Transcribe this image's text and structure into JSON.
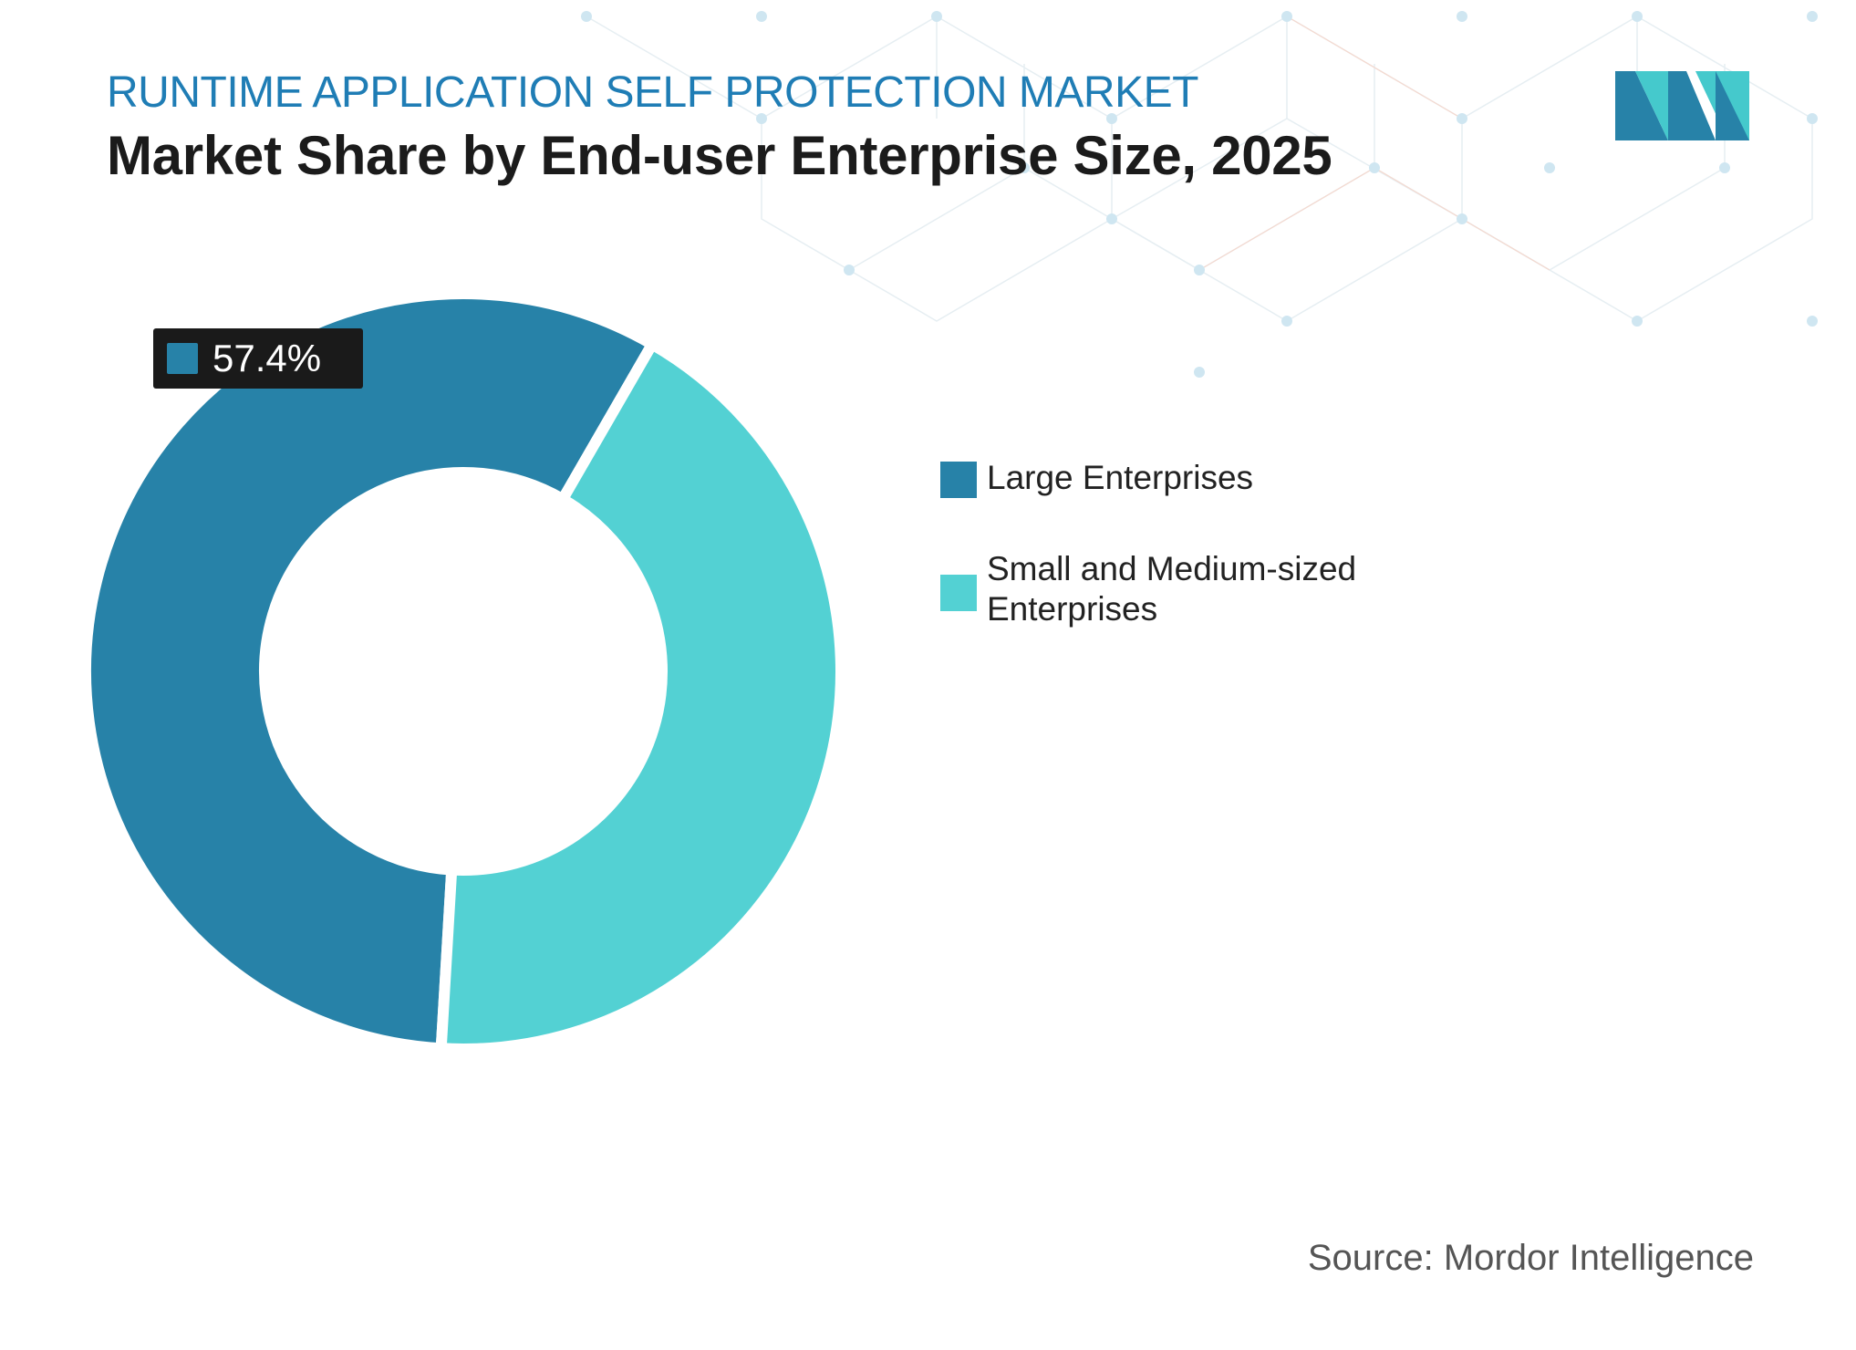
{
  "header": {
    "supertitle": "RUNTIME APPLICATION SELF PROTECTION MARKET",
    "title": "Market Share by End-user Enterprise Size, 2025"
  },
  "logo": {
    "icon": "mordor-intelligence-logo",
    "colors": [
      "#2782a8",
      "#45c9cc"
    ]
  },
  "chart_data": {
    "type": "pie",
    "variant": "donut",
    "categories": [
      "Large Enterprises",
      "Small and Medium-sized Enterprises"
    ],
    "values": [
      57.4,
      42.6
    ],
    "colors": [
      "#2782a8",
      "#53d1d3"
    ],
    "data_labels": [
      "57.4%"
    ],
    "legend_position": "right"
  },
  "badge": {
    "text": "57.4%"
  },
  "legend": [
    {
      "label": "Large Enterprises",
      "color": "#2782a8"
    },
    {
      "label": "Small and Medium-sized Enterprises",
      "color": "#53d1d3"
    }
  ],
  "footer": {
    "source": "Source: Mordor Intelligence"
  }
}
